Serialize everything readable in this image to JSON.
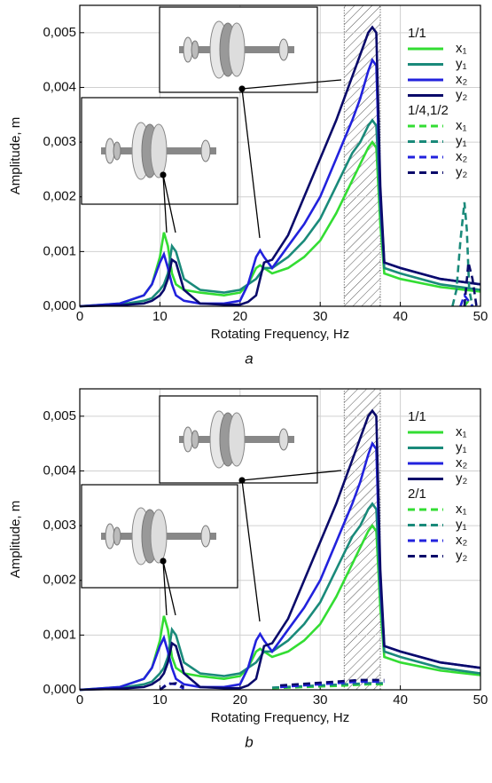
{
  "chart_data": [
    {
      "type": "line",
      "caption": "a",
      "xlabel": "Rotating Frequency, Hz",
      "ylabel": "Amplitude, m",
      "xlim": [
        0,
        50
      ],
      "xticks": [
        0,
        10,
        20,
        30,
        40,
        50
      ],
      "ylim": [
        0,
        0.0055
      ],
      "yticks": [
        {
          "value": 0,
          "label": "0,000"
        },
        {
          "value": 0.001,
          "label": "0,001"
        },
        {
          "value": 0.002,
          "label": "0,002"
        },
        {
          "value": 0.003,
          "label": "0,003"
        },
        {
          "value": 0.004,
          "label": "0,004"
        },
        {
          "value": 0.005,
          "label": "0,005"
        }
      ],
      "grid": true,
      "highlight_band": [
        33,
        37.5
      ],
      "x": [
        0,
        5,
        8,
        9,
        10,
        10.5,
        11,
        11.5,
        12,
        13,
        15,
        18,
        20,
        21,
        22,
        22.5,
        23,
        24,
        26,
        28,
        30,
        32,
        34,
        35,
        36,
        36.5,
        37,
        37.5,
        38,
        40,
        45,
        50
      ],
      "series_groups": [
        {
          "name": "1/1",
          "style": "solid",
          "series": [
            {
              "name": "x₁",
              "color": "#33dd33",
              "values": [
                0,
                5e-05,
                0.0002,
                0.0004,
                0.0009,
                0.00135,
                0.0011,
                0.0006,
                0.0004,
                0.0003,
                0.00025,
                0.0002,
                0.00025,
                0.0004,
                0.0007,
                0.00075,
                0.0007,
                0.0006,
                0.0007,
                0.0009,
                0.0012,
                0.0017,
                0.0023,
                0.0026,
                0.0029,
                0.003,
                0.0029,
                0.0015,
                0.0006,
                0.0005,
                0.00035,
                0.00027
              ]
            },
            {
              "name": "y₁",
              "color": "#1a8a7a",
              "values": [
                0,
                3e-05,
                0.0001,
                0.00015,
                0.0003,
                0.0004,
                0.0006,
                0.0011,
                0.001,
                0.0005,
                0.0003,
                0.00025,
                0.0003,
                0.0004,
                0.0005,
                0.0006,
                0.0007,
                0.0007,
                0.0009,
                0.0012,
                0.0016,
                0.0022,
                0.0028,
                0.003,
                0.0033,
                0.0034,
                0.0033,
                0.0018,
                0.0007,
                0.0006,
                0.0004,
                0.0003
              ]
            },
            {
              "name": "x₂",
              "color": "#2222dd",
              "values": [
                0,
                5e-05,
                0.0002,
                0.0004,
                0.0008,
                0.00095,
                0.0007,
                0.0004,
                0.0002,
                0.0001,
                5e-05,
                5e-05,
                0.0001,
                0.0004,
                0.0009,
                0.00102,
                0.0009,
                0.0007,
                0.0011,
                0.0015,
                0.002,
                0.0027,
                0.0034,
                0.0038,
                0.0043,
                0.0045,
                0.0044,
                0.002,
                0.0008,
                0.0007,
                0.0005,
                0.0004
              ]
            },
            {
              "name": "y₂",
              "color": "#0a0a6a",
              "values": [
                0,
                2e-05,
                5e-05,
                0.0001,
                0.0002,
                0.0003,
                0.0005,
                0.00085,
                0.0008,
                0.0003,
                5e-05,
                3e-05,
                3e-05,
                8e-05,
                0.0002,
                0.0005,
                0.0008,
                0.00085,
                0.0013,
                0.002,
                0.0027,
                0.0034,
                0.0042,
                0.0046,
                0.005,
                0.0051,
                0.005,
                0.0022,
                0.0008,
                0.0007,
                0.0005,
                0.0004
              ]
            }
          ]
        },
        {
          "name": "1/4,1/2",
          "style": "dashed",
          "series": [
            {
              "name": "x₁",
              "color": "#33dd33",
              "x": [
                48,
                48.5,
                49
              ],
              "values": [
                0,
                0.0001,
                0
              ]
            },
            {
              "name": "y₁",
              "color": "#1a8a7a",
              "x": [
                46.5,
                47,
                47.5,
                48,
                48.3,
                48.6,
                49
              ],
              "values": [
                0,
                0.0003,
                0.0012,
                0.0019,
                0.0014,
                0.0003,
                0
              ]
            },
            {
              "name": "x₂",
              "color": "#2222dd",
              "x": [
                47.5,
                48,
                48.5,
                49
              ],
              "values": [
                0,
                0.0002,
                0.0001,
                0
              ]
            },
            {
              "name": "y₂",
              "color": "#0a0a6a",
              "x": [
                48,
                48.5,
                49,
                49.5
              ],
              "values": [
                0,
                0.0008,
                0.0005,
                0
              ]
            }
          ]
        }
      ]
    },
    {
      "type": "line",
      "caption": "b",
      "xlabel": "Rotating Frequency, Hz",
      "ylabel": "Amplitude, m",
      "xlim": [
        0,
        50
      ],
      "xticks": [
        0,
        10,
        20,
        30,
        40,
        50
      ],
      "ylim": [
        0,
        0.0055
      ],
      "yticks": [
        {
          "value": 0,
          "label": "0,000"
        },
        {
          "value": 0.001,
          "label": "0,001"
        },
        {
          "value": 0.002,
          "label": "0,002"
        },
        {
          "value": 0.003,
          "label": "0,003"
        },
        {
          "value": 0.004,
          "label": "0,004"
        },
        {
          "value": 0.005,
          "label": "0,005"
        }
      ],
      "grid": true,
      "highlight_band": [
        33,
        37.5
      ],
      "x": [
        0,
        5,
        8,
        9,
        10,
        10.5,
        11,
        11.5,
        12,
        13,
        15,
        18,
        20,
        21,
        22,
        22.5,
        23,
        24,
        26,
        28,
        30,
        32,
        34,
        35,
        36,
        36.5,
        37,
        37.5,
        38,
        40,
        45,
        50
      ],
      "series_groups": [
        {
          "name": "1/1",
          "style": "solid",
          "series": [
            {
              "name": "x₁",
              "color": "#33dd33",
              "values": [
                0,
                5e-05,
                0.0002,
                0.0004,
                0.0009,
                0.00135,
                0.0011,
                0.0006,
                0.0004,
                0.0003,
                0.00025,
                0.0002,
                0.00025,
                0.0004,
                0.0007,
                0.00075,
                0.0007,
                0.0006,
                0.0007,
                0.0009,
                0.0012,
                0.0017,
                0.0023,
                0.0026,
                0.0029,
                0.003,
                0.0029,
                0.0015,
                0.0006,
                0.0005,
                0.00035,
                0.00027
              ]
            },
            {
              "name": "y₁",
              "color": "#1a8a7a",
              "values": [
                0,
                3e-05,
                0.0001,
                0.00015,
                0.0003,
                0.0004,
                0.0006,
                0.0011,
                0.001,
                0.0005,
                0.0003,
                0.00025,
                0.0003,
                0.0004,
                0.0005,
                0.0006,
                0.0007,
                0.0007,
                0.0009,
                0.0012,
                0.0016,
                0.0022,
                0.0028,
                0.003,
                0.0033,
                0.0034,
                0.0033,
                0.0018,
                0.0007,
                0.0006,
                0.0004,
                0.0003
              ]
            },
            {
              "name": "x₂",
              "color": "#2222dd",
              "values": [
                0,
                5e-05,
                0.0002,
                0.0004,
                0.0008,
                0.00095,
                0.0007,
                0.0004,
                0.0002,
                0.0001,
                5e-05,
                5e-05,
                0.0001,
                0.0004,
                0.0009,
                0.00102,
                0.0009,
                0.0007,
                0.0011,
                0.0015,
                0.002,
                0.0027,
                0.0034,
                0.0038,
                0.0043,
                0.0045,
                0.0044,
                0.002,
                0.0008,
                0.0007,
                0.0005,
                0.0004
              ]
            },
            {
              "name": "y₂",
              "color": "#0a0a6a",
              "values": [
                0,
                2e-05,
                5e-05,
                0.0001,
                0.0002,
                0.0003,
                0.0005,
                0.00085,
                0.0008,
                0.0003,
                5e-05,
                3e-05,
                3e-05,
                8e-05,
                0.0002,
                0.0005,
                0.0008,
                0.00085,
                0.0013,
                0.002,
                0.0027,
                0.0034,
                0.0042,
                0.0046,
                0.005,
                0.0051,
                0.005,
                0.0022,
                0.0008,
                0.0007,
                0.0005,
                0.0004
              ]
            }
          ]
        },
        {
          "name": "2/1",
          "style": "dashed",
          "series": [
            {
              "name": "x₁",
              "color": "#33dd33",
              "x": [
                24,
                28,
                32,
                36,
                38
              ],
              "values": [
                3e-05,
                5e-05,
                7e-05,
                0.0001,
                0.0001
              ]
            },
            {
              "name": "y₁",
              "color": "#1a8a7a",
              "x": [
                24,
                30,
                36,
                38
              ],
              "values": [
                4e-05,
                8e-05,
                0.00012,
                0.00012
              ]
            },
            {
              "name": "x₂",
              "color": "#2222dd",
              "x": [
                10,
                11,
                12,
                13,
                14,
                25,
                30,
                35,
                38
              ],
              "values": [
                0,
                0.00012,
                0.0001,
                2e-05,
                null,
                5e-05,
                0.0001,
                0.00015,
                0.00015
              ]
            },
            {
              "name": "y₂",
              "color": "#0a0a6a",
              "x": [
                10,
                11,
                12,
                13,
                14,
                25,
                30,
                35,
                38
              ],
              "values": [
                0,
                0.0001,
                0.00012,
                5e-05,
                null,
                8e-05,
                0.00013,
                0.00018,
                0.00018
              ]
            }
          ]
        }
      ]
    }
  ]
}
